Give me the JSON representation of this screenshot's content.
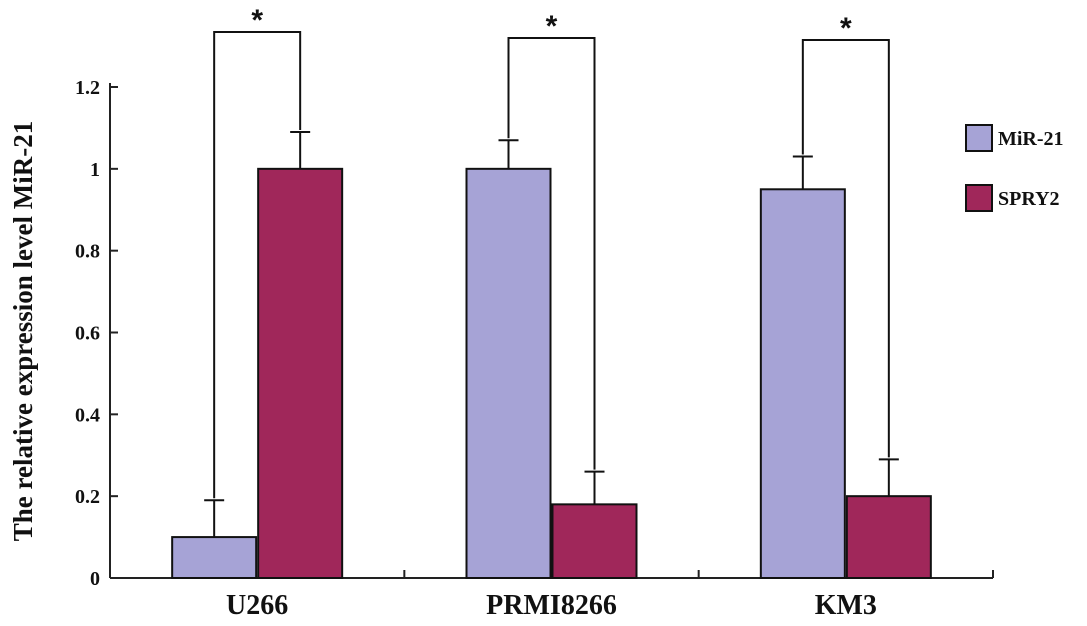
{
  "chart_data": {
    "type": "bar",
    "title": "",
    "xlabel": "",
    "ylabel": "The relative expression level MiR-21",
    "ylim": [
      0,
      1.2
    ],
    "yticks": [
      "0",
      "0.2",
      "0.4",
      "0.6",
      "0.8",
      "1",
      "1.2"
    ],
    "categories": [
      "U266",
      "PRMI8266",
      "KM3"
    ],
    "series": [
      {
        "name": "MiR-21",
        "values": [
          0.1,
          1.0,
          0.95
        ],
        "errors": [
          0.09,
          0.07,
          0.08
        ],
        "color": "#a6a3d6"
      },
      {
        "name": "SPRY2",
        "values": [
          1.0,
          0.18,
          0.2
        ],
        "errors": [
          0.09,
          0.08,
          0.09
        ],
        "color": "#a0275a"
      }
    ],
    "significance": [
      {
        "category": "U266",
        "label": "*"
      },
      {
        "category": "PRMI8266",
        "label": "*"
      },
      {
        "category": "KM3",
        "label": "*"
      }
    ],
    "legend_position": "right",
    "grid": false
  }
}
